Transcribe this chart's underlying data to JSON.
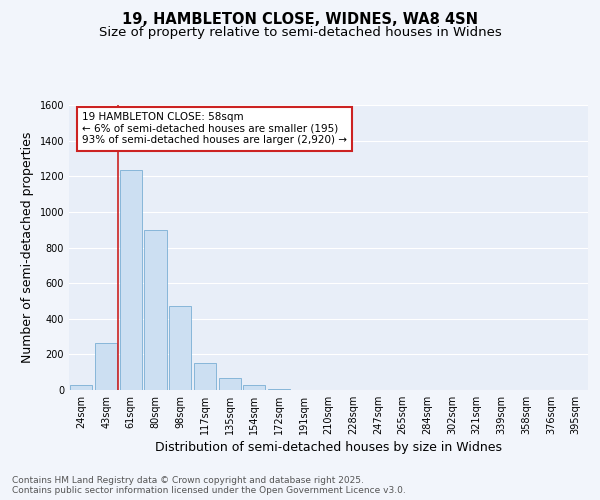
{
  "title_line1": "19, HAMBLETON CLOSE, WIDNES, WA8 4SN",
  "title_line2": "Size of property relative to semi-detached houses in Widnes",
  "xlabel": "Distribution of semi-detached houses by size in Widnes",
  "ylabel": "Number of semi-detached properties",
  "categories": [
    "24sqm",
    "43sqm",
    "61sqm",
    "80sqm",
    "98sqm",
    "117sqm",
    "135sqm",
    "154sqm",
    "172sqm",
    "191sqm",
    "210sqm",
    "228sqm",
    "247sqm",
    "265sqm",
    "284sqm",
    "302sqm",
    "321sqm",
    "339sqm",
    "358sqm",
    "376sqm",
    "395sqm"
  ],
  "values": [
    30,
    265,
    1235,
    900,
    470,
    150,
    70,
    30,
    5,
    2,
    1,
    0,
    0,
    0,
    0,
    0,
    0,
    0,
    0,
    0,
    0
  ],
  "bar_color": "#ccdff2",
  "bar_edge_color": "#7aafd4",
  "red_line_color": "#cc2222",
  "red_line_x": 1.5,
  "annotation_text": "19 HAMBLETON CLOSE: 58sqm\n← 6% of semi-detached houses are smaller (195)\n93% of semi-detached houses are larger (2,920) →",
  "annotation_box_color": "#ffffff",
  "annotation_box_edge_color": "#cc2222",
  "ylim": [
    0,
    1600
  ],
  "yticks": [
    0,
    200,
    400,
    600,
    800,
    1000,
    1200,
    1400,
    1600
  ],
  "footnote": "Contains HM Land Registry data © Crown copyright and database right 2025.\nContains public sector information licensed under the Open Government Licence v3.0.",
  "bg_color": "#f2f5fb",
  "plot_bg_color": "#e8eef8",
  "grid_color": "#ffffff",
  "title_fontsize": 10.5,
  "subtitle_fontsize": 9.5,
  "axis_label_fontsize": 9,
  "tick_fontsize": 7,
  "annotation_fontsize": 7.5,
  "footnote_fontsize": 6.5
}
